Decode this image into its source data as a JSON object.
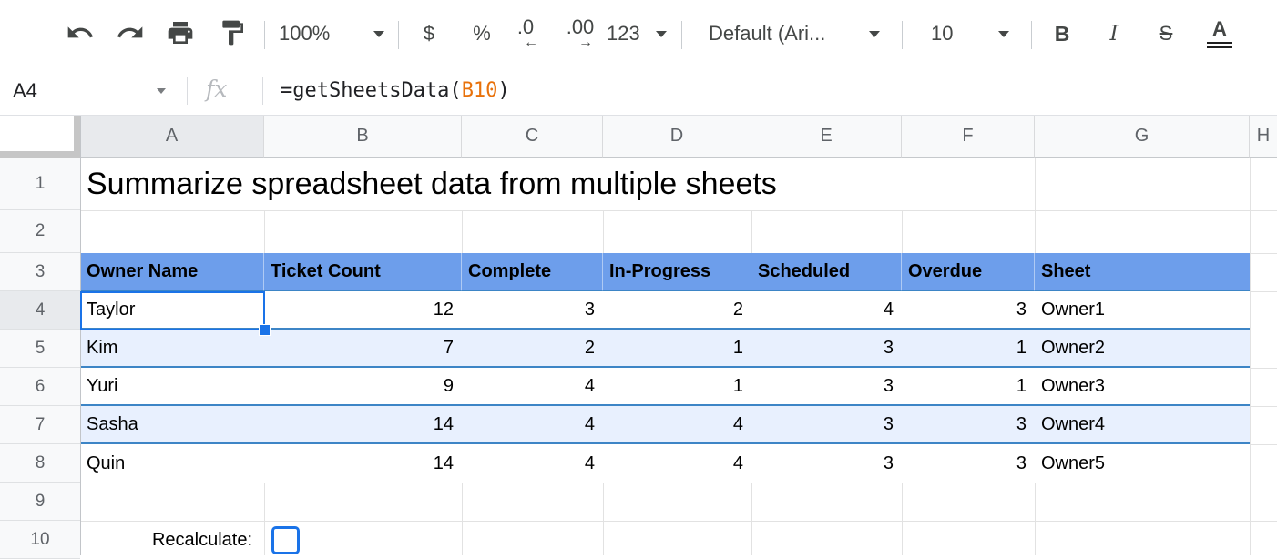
{
  "toolbar": {
    "zoom_value": "100%",
    "currency_label": "$",
    "percent_label": "%",
    "decrease_decimal_label": ".0",
    "decrease_decimal_arrow": "←",
    "increase_decimal_label": ".00",
    "increase_decimal_arrow": "→",
    "number_format_label": "123",
    "font_name": "Default (Ari...",
    "font_size": "10",
    "bold_label": "B",
    "italic_label": "I",
    "strikethrough_label": "S",
    "text_color_label": "A"
  },
  "formula_bar": {
    "name_box": "A4",
    "fx_label": "fx",
    "formula_prefix": "=getSheetsData(",
    "formula_ref": "B10",
    "formula_suffix": ")",
    "ref_color": "#e8710a"
  },
  "sheet": {
    "column_letters": [
      "A",
      "B",
      "C",
      "D",
      "E",
      "F",
      "G",
      "H"
    ],
    "row_numbers": [
      "1",
      "2",
      "3",
      "4",
      "5",
      "6",
      "7",
      "8",
      "9",
      "10"
    ],
    "title_cell": "Summarize spreadsheet data from multiple sheets",
    "table": {
      "headers": [
        "Owner Name",
        "Ticket Count",
        "Complete",
        "In-Progress",
        "Scheduled",
        "Overdue",
        "Sheet"
      ],
      "rows": [
        [
          "Taylor",
          "12",
          "3",
          "2",
          "4",
          "3",
          "Owner1"
        ],
        [
          "Kim",
          "7",
          "2",
          "1",
          "3",
          "1",
          "Owner2"
        ],
        [
          "Yuri",
          "9",
          "4",
          "1",
          "3",
          "1",
          "Owner3"
        ],
        [
          "Sasha",
          "14",
          "4",
          "4",
          "3",
          "3",
          "Owner4"
        ],
        [
          "Quin",
          "14",
          "4",
          "4",
          "3",
          "3",
          "Owner5"
        ]
      ]
    },
    "recalculate_label": "Recalculate:",
    "colors": {
      "table_header_fill": "#6d9eeb",
      "band_fill": "#e8f0fe",
      "row_border": "#3d85c6",
      "selection": "#1a73e8",
      "selected_header_fill": "#e8eaed",
      "header_fill": "#f8f9fa"
    }
  }
}
